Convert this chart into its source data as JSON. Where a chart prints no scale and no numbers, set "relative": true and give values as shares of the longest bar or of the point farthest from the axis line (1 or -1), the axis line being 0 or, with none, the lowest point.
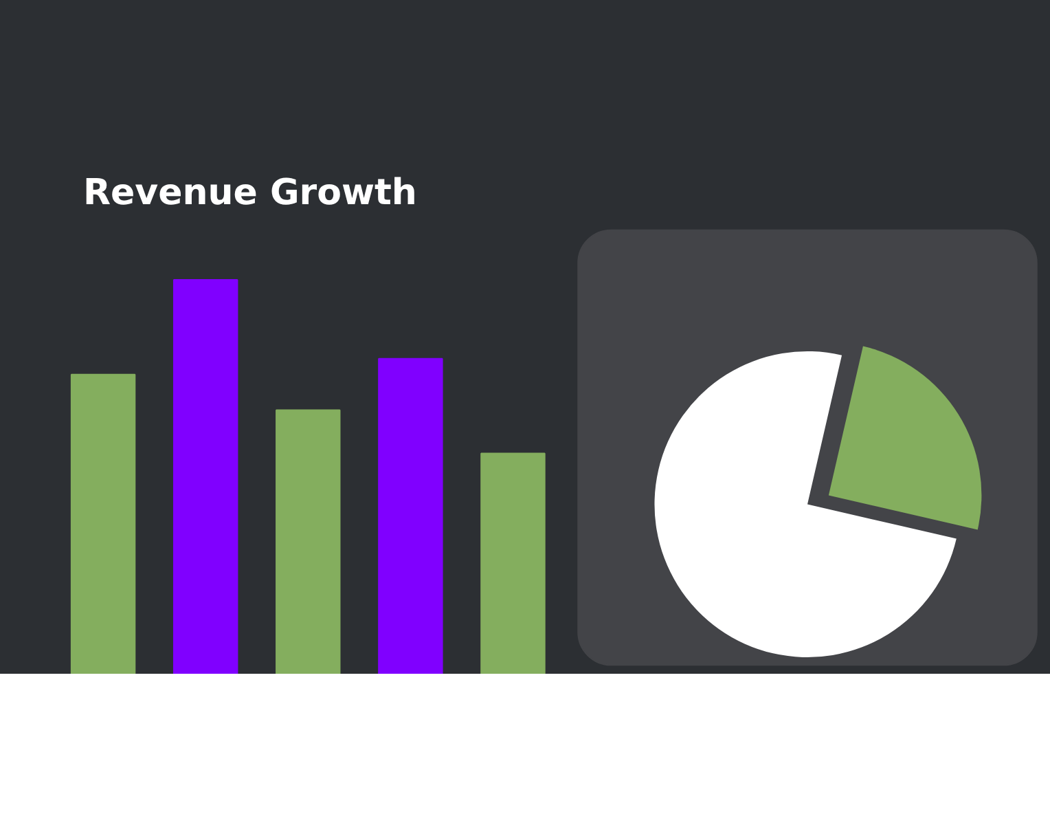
{
  "chart_data": [
    {
      "type": "bar",
      "title": "Revenue Growth",
      "categories": [
        null,
        null,
        null,
        null,
        null
      ],
      "values": [
        0.76,
        1,
        0.67,
        0.8,
        0.56
      ],
      "colors": [
        "#84ae5e",
        "#8000ff",
        "#84ae5e",
        "#8000ff",
        "#84ae5e"
      ],
      "relative": true
    },
    {
      "type": "pie",
      "categories": [
        null,
        null
      ],
      "values": [
        25,
        75
      ],
      "colors": [
        "#84ae5e",
        "#ffffff"
      ]
    }
  ]
}
